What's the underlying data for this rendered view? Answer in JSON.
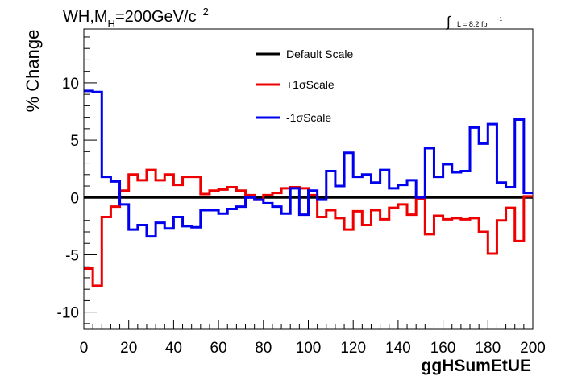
{
  "chart_data": {
    "type": "line",
    "step": true,
    "title_parts": {
      "main": "WH,M",
      "sub": "H",
      "rest": "=200GeV/c",
      "sup": "2"
    },
    "lumi_parts": {
      "integral": "∫",
      "text": "L = 8.2 fb",
      "sup": "-1"
    },
    "xlabel": "ggHSumEtUE",
    "ylabel": "% Change",
    "xlim": [
      0,
      200
    ],
    "ylim": [
      -11.5,
      14.7
    ],
    "x_ticks": [
      0,
      20,
      40,
      60,
      80,
      100,
      120,
      140,
      160,
      180,
      200
    ],
    "x_tick_labels": [
      "0",
      "20",
      "40",
      "60",
      "80",
      "100",
      "120",
      "140",
      "160",
      "180",
      "200"
    ],
    "y_ticks": [
      -10,
      -5,
      0,
      5,
      10
    ],
    "y_tick_labels": [
      "-10",
      "-5",
      "0",
      "5",
      "10"
    ],
    "legend_position": "top-center",
    "bin_edges": [
      0,
      4,
      8,
      12,
      16,
      20,
      24,
      28,
      32,
      36,
      40,
      44,
      48,
      52,
      56,
      60,
      64,
      68,
      72,
      76,
      80,
      84,
      88,
      92,
      96,
      100,
      104,
      108,
      112,
      116,
      120,
      124,
      128,
      132,
      136,
      140,
      144,
      148,
      152,
      156,
      160,
      164,
      168,
      172,
      176,
      180,
      184,
      188,
      192,
      196,
      200
    ],
    "series": [
      {
        "name": "Default Scale",
        "color": "#000000",
        "values": [
          0,
          0,
          0,
          0,
          0,
          0,
          0,
          0,
          0,
          0,
          0,
          0,
          0,
          0,
          0,
          0,
          0,
          0,
          0,
          0,
          0,
          0,
          0,
          0,
          0,
          0,
          0,
          0,
          0,
          0,
          0,
          0,
          0,
          0,
          0,
          0,
          0,
          0,
          0,
          0,
          0,
          0,
          0,
          0,
          0,
          0,
          0,
          0,
          0,
          0
        ]
      },
      {
        "name": "+1σScale",
        "color": "#ee0000",
        "values": [
          -6.2,
          -7.7,
          -1.7,
          -0.8,
          0.6,
          2.0,
          1.5,
          2.4,
          1.5,
          2.0,
          1.1,
          1.8,
          1.8,
          0.3,
          0.6,
          0.7,
          0.9,
          0.6,
          0.2,
          -0.2,
          0.2,
          0.4,
          0.8,
          0.9,
          0.8,
          0.2,
          -1.7,
          -1.1,
          -1.8,
          -2.8,
          -1.2,
          -2.4,
          -1.1,
          -1.9,
          -0.9,
          -0.6,
          -1.5,
          -0.1,
          -3.2,
          -1.6,
          -1.9,
          -1.8,
          -1.9,
          -1.8,
          -3.0,
          -4.9,
          -2.0,
          -0.9,
          -3.8,
          0.1
        ]
      },
      {
        "name": "-1σScale",
        "color": "#0000ee",
        "values": [
          9.3,
          9.2,
          1.8,
          1.4,
          -0.6,
          -2.8,
          -2.4,
          -3.4,
          -2.2,
          -2.7,
          -1.7,
          -2.5,
          -2.6,
          -1.1,
          -1.1,
          -1.4,
          -1.0,
          -0.8,
          0.0,
          -0.2,
          -0.5,
          -0.8,
          -1.4,
          0.8,
          -1.5,
          0.6,
          -0.2,
          2.3,
          1.0,
          3.9,
          1.8,
          2.0,
          1.3,
          2.4,
          0.8,
          1.1,
          1.5,
          0.0,
          4.3,
          1.8,
          2.9,
          2.2,
          2.3,
          6.1,
          4.7,
          6.4,
          1.3,
          0.9,
          6.8,
          0.4
        ]
      }
    ]
  }
}
